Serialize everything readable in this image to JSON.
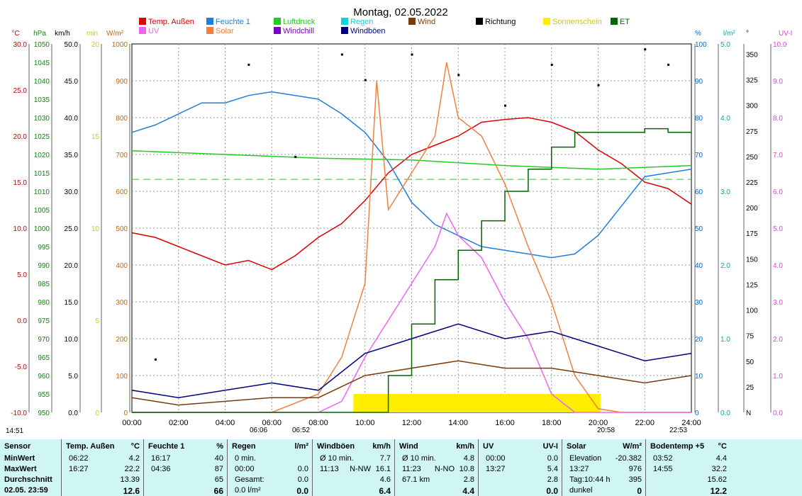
{
  "chart_data": {
    "type": "line",
    "title": "Montag, 02.05.2022",
    "legend": [
      {
        "label": "Temp. Außen",
        "color": "#e00000"
      },
      {
        "label": "Feuchte 1",
        "color": "#1e7fe0"
      },
      {
        "label": "Luftdruck",
        "color": "#22cc22"
      },
      {
        "label": "Regen",
        "color": "#00d8d8"
      },
      {
        "label": "Wind",
        "color": "#7a3b0a"
      },
      {
        "label": "Richtung",
        "color": "#000000"
      },
      {
        "label": "Sonnenschein",
        "color": "#ffee00"
      },
      {
        "label": "ET",
        "color": "#006600"
      },
      {
        "label": "UV",
        "color": "#ee66ee"
      },
      {
        "label": "Solar",
        "color": "#f08040"
      },
      {
        "label": "Windchill",
        "color": "#7a00cc"
      },
      {
        "label": "Windböen",
        "color": "#000080"
      }
    ],
    "axes_left": [
      {
        "unit": "°C",
        "color": "#cc0000",
        "ticks": [
          "30.0",
          "25.0",
          "20.0",
          "15.0",
          "10.0",
          "5.0",
          "0.0",
          "-5.0",
          "-10.0"
        ]
      },
      {
        "unit": "hPa",
        "color": "#118811",
        "ticks": [
          "1050",
          "1045",
          "1040",
          "1035",
          "1030",
          "1025",
          "1020",
          "1015",
          "1010",
          "1005",
          "1000",
          "995",
          "990",
          "985",
          "980",
          "975",
          "970",
          "965",
          "960",
          "955",
          "950"
        ]
      },
      {
        "unit": "km/h",
        "color": "#000000",
        "ticks": [
          "50.0",
          "45.0",
          "40.0",
          "35.0",
          "30.0",
          "25.0",
          "20.0",
          "15.0",
          "10.0",
          "5.0",
          "0.0"
        ]
      },
      {
        "unit": "min",
        "color": "#cccc00",
        "ticks": [
          "20",
          "15",
          "10",
          "5",
          "0"
        ]
      },
      {
        "unit": "W/m²",
        "color": "#cc6600",
        "ticks": [
          "1000",
          "900",
          "800",
          "700",
          "600",
          "500",
          "400",
          "300",
          "200",
          "100",
          "0"
        ]
      }
    ],
    "axes_right": [
      {
        "unit": "%",
        "color": "#0066cc",
        "ticks": [
          "100",
          "90",
          "80",
          "70",
          "60",
          "50",
          "40",
          "30",
          "20",
          "10",
          "0"
        ]
      },
      {
        "unit": "l/m²",
        "color": "#00aaaa",
        "ticks": [
          "5.0",
          "4.0",
          "3.0",
          "2.0",
          "1.0",
          "0.0"
        ]
      },
      {
        "unit": "°",
        "color": "#000000",
        "ticks": [
          "350",
          "325",
          "300",
          "275",
          "250",
          "225",
          "200",
          "175",
          "150",
          "125",
          "100",
          "75",
          "50",
          "25",
          "N"
        ]
      },
      {
        "unit": "UV-I",
        "color": "#dd44dd",
        "ticks": [
          "10.0",
          "9.0",
          "8.0",
          "7.0",
          "6.0",
          "5.0",
          "4.0",
          "3.0",
          "2.0",
          "1.0",
          "0.0"
        ]
      }
    ],
    "x_ticks": [
      "00:00",
      "02:00",
      "04:00",
      "06:00",
      "08:00",
      "10:00",
      "12:00",
      "14:00",
      "16:00",
      "18:00",
      "20:00",
      "22:00",
      "24:00"
    ],
    "time_markers": {
      "left": "14:51",
      "sunrise": "06:06",
      "dawn": "06:52",
      "sunset": "20:58",
      "dusk": "22:53"
    },
    "x_range_hours": [
      0,
      24
    ],
    "series": [
      {
        "name": "Temp. Außen",
        "axis": "°C",
        "points": [
          [
            0,
            9.5
          ],
          [
            1,
            9
          ],
          [
            2,
            8
          ],
          [
            3,
            7
          ],
          [
            4,
            6
          ],
          [
            5,
            6.5
          ],
          [
            6,
            5.5
          ],
          [
            7,
            7
          ],
          [
            8,
            9
          ],
          [
            9,
            10.5
          ],
          [
            10,
            13
          ],
          [
            11,
            16
          ],
          [
            12,
            18
          ],
          [
            13,
            19
          ],
          [
            14,
            20
          ],
          [
            15,
            21.5
          ],
          [
            16,
            21.8
          ],
          [
            17,
            22
          ],
          [
            18,
            21.5
          ],
          [
            19,
            20.5
          ],
          [
            20,
            18.5
          ],
          [
            21,
            17
          ],
          [
            22,
            15
          ],
          [
            23,
            14.3
          ],
          [
            24,
            12.6
          ]
        ]
      },
      {
        "name": "Feuchte 1",
        "axis": "%",
        "points": [
          [
            0,
            76
          ],
          [
            1,
            78
          ],
          [
            2,
            81
          ],
          [
            3,
            84
          ],
          [
            4,
            84
          ],
          [
            5,
            86
          ],
          [
            6,
            87
          ],
          [
            7,
            86
          ],
          [
            8,
            85
          ],
          [
            9,
            81
          ],
          [
            10,
            76
          ],
          [
            11,
            68
          ],
          [
            12,
            57
          ],
          [
            13,
            51
          ],
          [
            14,
            48
          ],
          [
            15,
            45
          ],
          [
            16,
            44
          ],
          [
            17,
            43
          ],
          [
            18,
            42
          ],
          [
            19,
            43
          ],
          [
            20,
            48
          ],
          [
            21,
            56
          ],
          [
            22,
            64
          ],
          [
            23,
            65
          ],
          [
            24,
            66
          ]
        ]
      },
      {
        "name": "Luftdruck",
        "axis": "hPa",
        "points": [
          [
            0,
            1021
          ],
          [
            4,
            1020
          ],
          [
            8,
            1019
          ],
          [
            12,
            1018.5
          ],
          [
            16,
            1017
          ],
          [
            20,
            1016
          ],
          [
            24,
            1017
          ]
        ]
      },
      {
        "name": "Solar",
        "axis": "W/m²",
        "points": [
          [
            0,
            0
          ],
          [
            6,
            0
          ],
          [
            8,
            50
          ],
          [
            9,
            150
          ],
          [
            10,
            350
          ],
          [
            10.5,
            900
          ],
          [
            11,
            550
          ],
          [
            12,
            650
          ],
          [
            13,
            750
          ],
          [
            13.5,
            950
          ],
          [
            14,
            800
          ],
          [
            15,
            750
          ],
          [
            16,
            620
          ],
          [
            17,
            450
          ],
          [
            18,
            300
          ],
          [
            19,
            100
          ],
          [
            20,
            10
          ],
          [
            21,
            0
          ],
          [
            24,
            0
          ]
        ]
      },
      {
        "name": "UV",
        "axis": "UV-I",
        "points": [
          [
            0,
            0
          ],
          [
            8,
            0
          ],
          [
            9,
            0.3
          ],
          [
            10,
            1.5
          ],
          [
            11,
            2.5
          ],
          [
            12,
            3.5
          ],
          [
            13,
            4.5
          ],
          [
            13.5,
            5.4
          ],
          [
            14,
            4.8
          ],
          [
            15,
            4.2
          ],
          [
            16,
            3
          ],
          [
            17,
            2
          ],
          [
            18,
            0.5
          ],
          [
            19,
            0
          ],
          [
            24,
            0
          ]
        ]
      },
      {
        "name": "ET",
        "axis": "l/m²",
        "points": [
          [
            0,
            0
          ],
          [
            10,
            0
          ],
          [
            11,
            0.5
          ],
          [
            12,
            1.2
          ],
          [
            13,
            1.8
          ],
          [
            14,
            2.2
          ],
          [
            15,
            2.6
          ],
          [
            16,
            3.0
          ],
          [
            17,
            3.3
          ],
          [
            18,
            3.6
          ],
          [
            19,
            3.8
          ],
          [
            20,
            3.8
          ],
          [
            21,
            3.8
          ],
          [
            22,
            3.85
          ],
          [
            23,
            3.8
          ],
          [
            24,
            3.8
          ]
        ]
      },
      {
        "name": "Windböen",
        "axis": "km/h",
        "points": [
          [
            0,
            3
          ],
          [
            2,
            2
          ],
          [
            4,
            3
          ],
          [
            6,
            4
          ],
          [
            8,
            3
          ],
          [
            10,
            8
          ],
          [
            12,
            10
          ],
          [
            14,
            12
          ],
          [
            16,
            10
          ],
          [
            18,
            11
          ],
          [
            20,
            9
          ],
          [
            22,
            7
          ],
          [
            24,
            8
          ]
        ]
      },
      {
        "name": "Wind",
        "axis": "km/h",
        "points": [
          [
            0,
            2
          ],
          [
            2,
            1
          ],
          [
            4,
            1.5
          ],
          [
            6,
            2
          ],
          [
            8,
            2
          ],
          [
            10,
            5
          ],
          [
            12,
            6
          ],
          [
            14,
            7
          ],
          [
            16,
            6
          ],
          [
            18,
            6
          ],
          [
            20,
            5
          ],
          [
            22,
            4
          ],
          [
            24,
            5
          ]
        ]
      },
      {
        "name": "Richtung",
        "axis": "°",
        "points": [
          [
            1,
            52
          ],
          [
            5,
            340
          ],
          [
            7,
            250
          ],
          [
            9,
            350
          ],
          [
            10,
            325
          ],
          [
            12,
            350
          ],
          [
            14,
            330
          ],
          [
            16,
            300
          ],
          [
            18,
            340
          ],
          [
            20,
            320
          ],
          [
            22,
            355
          ],
          [
            23,
            340
          ]
        ]
      }
    ],
    "sunshine_ranges": [
      [
        9.5,
        20.1
      ]
    ],
    "dashed_reference": {
      "axis": "hPa",
      "value": 1013.25
    }
  },
  "stats": {
    "columns": [
      {
        "name": "Sensor",
        "unit": "",
        "rows": [
          {
            "a": "MinWert",
            "b": "",
            "c": ""
          },
          {
            "a": "MaxWert",
            "b": "",
            "c": ""
          },
          {
            "a": "Durchschnitt",
            "b": "",
            "c": ""
          },
          {
            "a": "02.05. 23:59",
            "b": "",
            "c": ""
          }
        ]
      },
      {
        "name": "Temp. Außen",
        "unit": "°C",
        "rows": [
          {
            "a": "06:22",
            "b": "",
            "c": "4.2"
          },
          {
            "a": "16:27",
            "b": "",
            "c": "22.2"
          },
          {
            "a": "",
            "b": "",
            "c": "13.39"
          },
          {
            "a": "",
            "b": "",
            "c": "12.6"
          }
        ]
      },
      {
        "name": "Feuchte 1",
        "unit": "%",
        "rows": [
          {
            "a": "16:17",
            "b": "",
            "c": "40"
          },
          {
            "a": "04:36",
            "b": "",
            "c": "87"
          },
          {
            "a": "",
            "b": "",
            "c": "65"
          },
          {
            "a": "",
            "b": "",
            "c": "66"
          }
        ]
      },
      {
        "name": "Regen",
        "unit": "l/m²",
        "rows": [
          {
            "a": "0 min.",
            "b": "",
            "c": ""
          },
          {
            "a": "00:00",
            "b": "",
            "c": "0.0"
          },
          {
            "a": "Gesamt:",
            "b": "",
            "c": "0.0"
          },
          {
            "a": "0.0 l/m²",
            "b": "",
            "c": "0.0"
          }
        ]
      },
      {
        "name": "Windböen",
        "unit": "km/h",
        "rows": [
          {
            "a": "Ø 10 min.",
            "b": "",
            "c": "7.7"
          },
          {
            "a": "11:13",
            "b": "N-NW",
            "c": "16.1"
          },
          {
            "a": "",
            "b": "",
            "c": "4.6"
          },
          {
            "a": "",
            "b": "",
            "c": "6.4"
          }
        ]
      },
      {
        "name": "Wind",
        "unit": "km/h",
        "rows": [
          {
            "a": "Ø 10 min.",
            "b": "",
            "c": "4.8"
          },
          {
            "a": "11:23",
            "b": "N-NO",
            "c": "10.8"
          },
          {
            "a": "67.1 km",
            "b": "",
            "c": "2.8"
          },
          {
            "a": "",
            "b": "",
            "c": "4.4"
          }
        ]
      },
      {
        "name": "UV",
        "unit": "UV-I",
        "rows": [
          {
            "a": "00:00",
            "b": "",
            "c": "0.0"
          },
          {
            "a": "13:27",
            "b": "",
            "c": "5.4"
          },
          {
            "a": "",
            "b": "",
            "c": "2.8"
          },
          {
            "a": "",
            "b": "",
            "c": "0.0"
          }
        ]
      },
      {
        "name": "Solar",
        "unit": "W/m²",
        "rows": [
          {
            "a": "Elevation",
            "b": "",
            "c": "-20.382"
          },
          {
            "a": "13:27",
            "b": "",
            "c": "976"
          },
          {
            "a": "Tag:10:44 h",
            "b": "",
            "c": "395"
          },
          {
            "a": "dunkel",
            "b": "",
            "c": "0"
          }
        ]
      },
      {
        "name": "Bodentemp +5",
        "unit": "°C",
        "rows": [
          {
            "a": "03:52",
            "b": "",
            "c": "4.4"
          },
          {
            "a": "14:55",
            "b": "",
            "c": "32.2"
          },
          {
            "a": "",
            "b": "",
            "c": "15.62"
          },
          {
            "a": "",
            "b": "",
            "c": "12.2"
          }
        ]
      }
    ]
  }
}
